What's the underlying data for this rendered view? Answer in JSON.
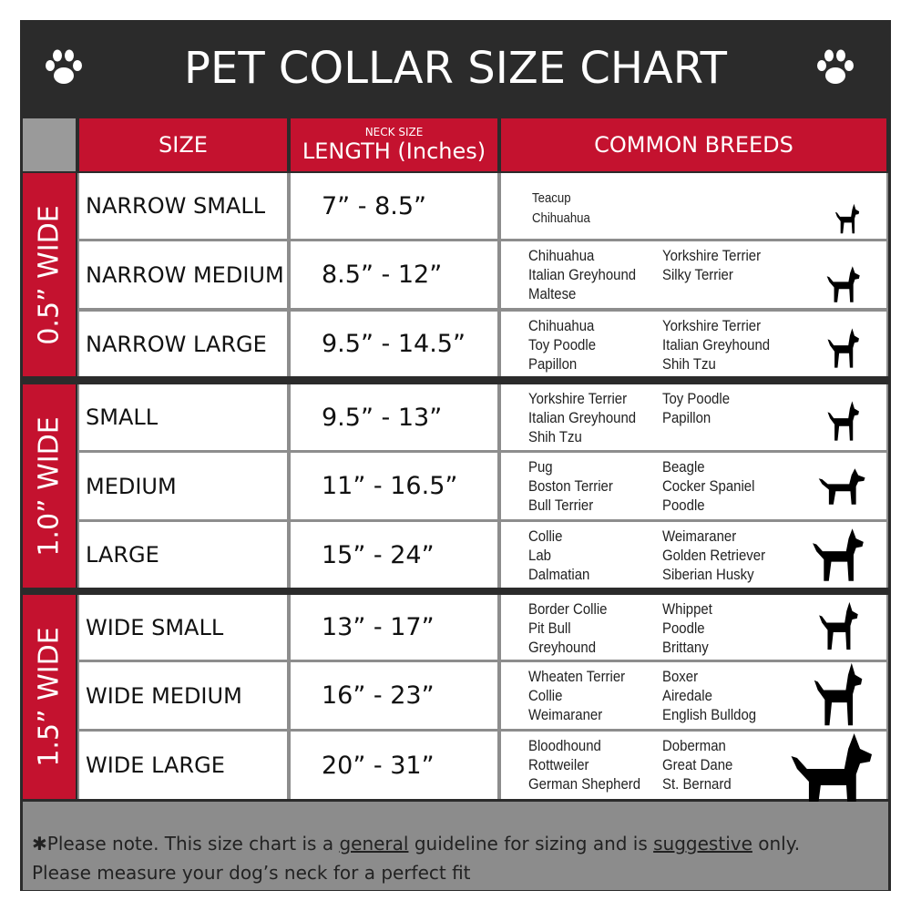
{
  "title": "PET COLLAR SIZE CHART",
  "icons": {
    "left": "paw-print-icon",
    "right": "paw-print-icon"
  },
  "colors": {
    "accent_red": "#c4122f",
    "dark": "#2b2b2b",
    "gray": "#8c8c8c"
  },
  "headers": {
    "size": "SIZE",
    "length_small": "NECK SIZE",
    "length": "LENGTH (Inches)",
    "breeds": "COMMON BREEDS"
  },
  "groups": [
    {
      "label": "0.5” WIDE",
      "rows": [
        {
          "size": "NARROW SMALL",
          "length": "7” - 8.5”",
          "breeds_col1": [
            "Teacup",
            "Chihuahua"
          ],
          "breeds_col2": [],
          "icon": "yorkie-silhouette-icon"
        },
        {
          "size": "NARROW MEDIUM",
          "length": "8.5” - 12”",
          "breeds_col1": [
            "Chihuahua",
            "Italian Greyhound",
            "Maltese"
          ],
          "breeds_col2": [
            "Yorkshire Terrier",
            "Silky Terrier"
          ],
          "icon": "chihuahua-silhouette-icon"
        },
        {
          "size": "NARROW LARGE",
          "length": "9.5” - 14.5”",
          "breeds_col1": [
            "Chihuahua",
            "Toy Poodle",
            "Papillon"
          ],
          "breeds_col2": [
            "Yorkshire Terrier",
            "Italian Greyhound",
            "Shih Tzu"
          ],
          "icon": "pomeranian-silhouette-icon"
        }
      ]
    },
    {
      "label": "1.0” WIDE",
      "rows": [
        {
          "size": "SMALL",
          "length": "9.5” - 13”",
          "breeds_col1": [
            "Yorkshire Terrier",
            "Italian Greyhound",
            "Shih Tzu"
          ],
          "breeds_col2": [
            "Toy Poodle",
            "Papillon"
          ],
          "icon": "pomeranian-silhouette-icon"
        },
        {
          "size": "MEDIUM",
          "length": "11” - 16.5”",
          "breeds_col1": [
            "Pug",
            "Boston Terrier",
            "Bull Terrier"
          ],
          "breeds_col2": [
            "Beagle",
            "Cocker Spaniel",
            "Poodle"
          ],
          "icon": "dachshund-silhouette-icon"
        },
        {
          "size": "LARGE",
          "length": "15” - 24”",
          "breeds_col1": [
            "Collie",
            "Lab",
            "Dalmatian"
          ],
          "breeds_col2": [
            "Weimaraner",
            "Golden Retriever",
            "Siberian Husky"
          ],
          "icon": "shepherd-silhouette-icon"
        }
      ]
    },
    {
      "label": "1.5” WIDE",
      "rows": [
        {
          "size": "WIDE SMALL",
          "length": "13” - 17”",
          "breeds_col1": [
            "Border Collie",
            "Pit Bull",
            "Greyhound"
          ],
          "breeds_col2": [
            "Whippet",
            "Poodle",
            "Brittany"
          ],
          "icon": "bulldog-silhouette-icon"
        },
        {
          "size": "WIDE MEDIUM",
          "length": "16” - 23”",
          "breeds_col1": [
            "Wheaten Terrier",
            "Collie",
            "Weimaraner"
          ],
          "breeds_col2": [
            "Boxer",
            "Airedale",
            "English Bulldog"
          ],
          "icon": "pitbull-silhouette-icon"
        },
        {
          "size": "WIDE LARGE",
          "length": "20” - 31”",
          "breeds_col1": [
            "Bloodhound",
            "Rottweiler",
            "German Shepherd"
          ],
          "breeds_col2": [
            "Doberman",
            "Great Dane",
            "St. Bernard"
          ],
          "icon": "doberman-silhouette-icon"
        }
      ]
    }
  ],
  "footer": {
    "part1": "✱Please note. This size chart is a ",
    "general": "general",
    "part2": " guideline for sizing and is ",
    "suggestive": "suggestive",
    "part3": " only.",
    "line2": "Please measure your dog’s neck for a perfect fit"
  }
}
